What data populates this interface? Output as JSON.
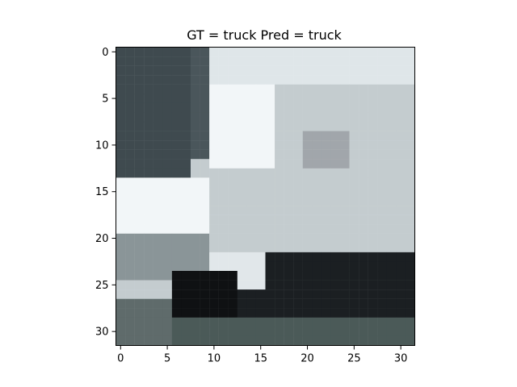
{
  "figure": {
    "title": "GT = truck Pred = truck"
  },
  "image_panel": {
    "description_grid": "32x32 pixel thumbnail",
    "pixel_rows": 32,
    "pixel_cols": 32,
    "x_range": [
      -0.5,
      31.5
    ],
    "y_range": [
      31.5,
      -0.5
    ]
  },
  "chart_data": {
    "type": "heatmap",
    "title": "GT = truck Pred = truck",
    "xlabel": "",
    "ylabel": "",
    "xlim": [
      -0.5,
      31.5
    ],
    "ylim": [
      31.5,
      -0.5
    ],
    "x_ticks": [
      0,
      5,
      10,
      15,
      20,
      25,
      30
    ],
    "y_ticks": [
      0,
      5,
      10,
      15,
      20,
      25,
      30
    ],
    "x_tick_labels": [
      "0",
      "5",
      "10",
      "15",
      "20",
      "25",
      "30"
    ],
    "y_tick_labels": [
      "0",
      "5",
      "10",
      "15",
      "20",
      "25",
      "30"
    ],
    "grid": false,
    "colors": {
      "dark_bg": "#3f4a4f",
      "cab_white": "#f2f6f8",
      "body_light": "#c4cccf",
      "body_mid": "#aab4b8",
      "shadow": "#1b1f22",
      "ground": "#4b5a58"
    }
  }
}
